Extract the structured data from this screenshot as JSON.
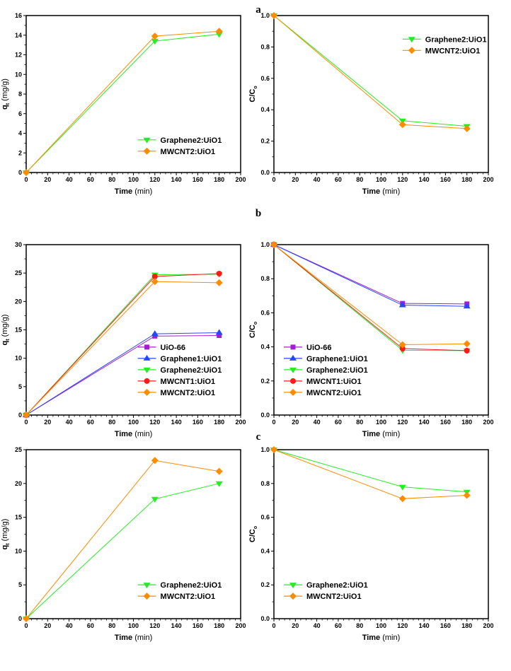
{
  "colors": {
    "UiO-66": "#a21fd0",
    "Graphene1:UiO1": "#2946ff",
    "Graphene2:UiO1": "#22ee22",
    "MWCNT1:UiO1": "#ff1a1a",
    "MWCNT2:UiO1": "#ff8c00"
  },
  "markers": {
    "UiO-66": "square",
    "Graphene1:UiO1": "triangle-up",
    "Graphene2:UiO1": "triangle-down",
    "MWCNT1:UiO1": "circle",
    "MWCNT2:UiO1": "diamond"
  },
  "panel_labels": [
    "a",
    "b",
    "c"
  ],
  "chart_data": [
    {
      "type": "line",
      "panel": "a",
      "xlabel_bold": "Time",
      "xlabel_unit": "(min)",
      "ylabel": "q",
      "ylabel_sub": "t",
      "ylabel_unit": " (mg/g)",
      "xlim": [
        0,
        200
      ],
      "ylim": [
        0,
        16
      ],
      "xticks": [
        0,
        20,
        40,
        60,
        80,
        100,
        120,
        140,
        160,
        180,
        200
      ],
      "yticks": [
        0,
        2,
        4,
        6,
        8,
        10,
        12,
        14,
        16
      ],
      "ytick_decimals": 0,
      "legend": "bottom-right",
      "x": [
        0,
        120,
        180
      ],
      "series": [
        {
          "name": "Graphene2:UiO1",
          "values": [
            0,
            13.4,
            14.1
          ]
        },
        {
          "name": "MWCNT2:UiO1",
          "values": [
            0,
            13.9,
            14.4
          ]
        }
      ]
    },
    {
      "type": "line",
      "panel": "a",
      "xlabel_bold": "Time",
      "xlabel_unit": "(min)",
      "ylabel": "C/C",
      "ylabel_sub": "o",
      "ylabel_unit": "",
      "xlim": [
        0,
        200
      ],
      "ylim": [
        0,
        1
      ],
      "xticks": [
        0,
        20,
        40,
        60,
        80,
        100,
        120,
        140,
        160,
        180,
        200
      ],
      "yticks": [
        0,
        0.2,
        0.4,
        0.6,
        0.8,
        1.0
      ],
      "ytick_decimals": 1,
      "legend": "top-right",
      "x": [
        0,
        120,
        180
      ],
      "series": [
        {
          "name": "Graphene2:UiO1",
          "values": [
            1,
            0.33,
            0.295
          ]
        },
        {
          "name": "MWCNT2:UiO1",
          "values": [
            1,
            0.305,
            0.28
          ]
        }
      ]
    },
    {
      "type": "line",
      "panel": "b",
      "xlabel_bold": "Time",
      "xlabel_unit": "(min)",
      "ylabel": "q",
      "ylabel_sub": "t",
      "ylabel_unit": " (mg/g)",
      "xlim": [
        0,
        200
      ],
      "ylim": [
        0,
        30
      ],
      "xticks": [
        0,
        20,
        40,
        60,
        80,
        100,
        120,
        140,
        160,
        180,
        200
      ],
      "yticks": [
        0,
        5,
        10,
        15,
        20,
        25,
        30
      ],
      "ytick_decimals": 0,
      "legend": "bottom-right",
      "x": [
        0,
        120,
        180
      ],
      "series": [
        {
          "name": "UiO-66",
          "values": [
            0,
            13.9,
            14.0
          ]
        },
        {
          "name": "Graphene1:UiO1",
          "values": [
            0,
            14.3,
            14.5
          ]
        },
        {
          "name": "Graphene2:UiO1",
          "values": [
            0,
            24.7,
            24.8
          ]
        },
        {
          "name": "MWCNT1:UiO1",
          "values": [
            0,
            24.4,
            24.9
          ]
        },
        {
          "name": "MWCNT2:UiO1",
          "values": [
            0,
            23.5,
            23.3
          ]
        }
      ]
    },
    {
      "type": "line",
      "panel": "b",
      "xlabel_bold": "Time",
      "xlabel_unit": "(min)",
      "ylabel": "C/C",
      "ylabel_sub": "o",
      "ylabel_unit": "",
      "xlim": [
        0,
        200
      ],
      "ylim": [
        0,
        1
      ],
      "xticks": [
        0,
        20,
        40,
        60,
        80,
        100,
        120,
        140,
        160,
        180,
        200
      ],
      "yticks": [
        0,
        0.2,
        0.4,
        0.6,
        0.8,
        1.0
      ],
      "ytick_decimals": 1,
      "legend": "bottom-left",
      "x": [
        0,
        120,
        180
      ],
      "series": [
        {
          "name": "UiO-66",
          "values": [
            1,
            0.655,
            0.652
          ]
        },
        {
          "name": "Graphene1:UiO1",
          "values": [
            1,
            0.645,
            0.638
          ]
        },
        {
          "name": "Graphene2:UiO1",
          "values": [
            1,
            0.38,
            0.378
          ]
        },
        {
          "name": "MWCNT1:UiO1",
          "values": [
            1,
            0.39,
            0.378
          ]
        },
        {
          "name": "MWCNT2:UiO1",
          "values": [
            1,
            0.413,
            0.418
          ]
        }
      ]
    },
    {
      "type": "line",
      "panel": "c",
      "xlabel_bold": "Time",
      "xlabel_unit": "(min)",
      "ylabel": "q",
      "ylabel_sub": "t",
      "ylabel_unit": " (mg/g)",
      "xlim": [
        0,
        200
      ],
      "ylim": [
        0,
        25
      ],
      "xticks": [
        0,
        20,
        40,
        60,
        80,
        100,
        120,
        140,
        160,
        180,
        200
      ],
      "yticks": [
        0,
        5,
        10,
        15,
        20,
        25
      ],
      "ytick_decimals": 0,
      "legend": "bottom-right",
      "x": [
        0,
        120,
        180
      ],
      "series": [
        {
          "name": "Graphene2:UiO1",
          "values": [
            0,
            17.7,
            20.0
          ]
        },
        {
          "name": "MWCNT2:UiO1",
          "values": [
            0,
            23.4,
            21.8
          ]
        }
      ]
    },
    {
      "type": "line",
      "panel": "c",
      "xlabel_bold": "Time",
      "xlabel_unit": "(min)",
      "ylabel": "C/C",
      "ylabel_sub": "o",
      "ylabel_unit": "",
      "xlim": [
        0,
        200
      ],
      "ylim": [
        0,
        1
      ],
      "xticks": [
        0,
        20,
        40,
        60,
        80,
        100,
        120,
        140,
        160,
        180,
        200
      ],
      "yticks": [
        0,
        0.2,
        0.4,
        0.6,
        0.8,
        1.0
      ],
      "ytick_decimals": 1,
      "legend": "bottom-left",
      "x": [
        0,
        120,
        180
      ],
      "series": [
        {
          "name": "Graphene2:UiO1",
          "values": [
            1,
            0.78,
            0.75
          ]
        },
        {
          "name": "MWCNT2:UiO1",
          "values": [
            1,
            0.71,
            0.73
          ]
        }
      ]
    }
  ]
}
